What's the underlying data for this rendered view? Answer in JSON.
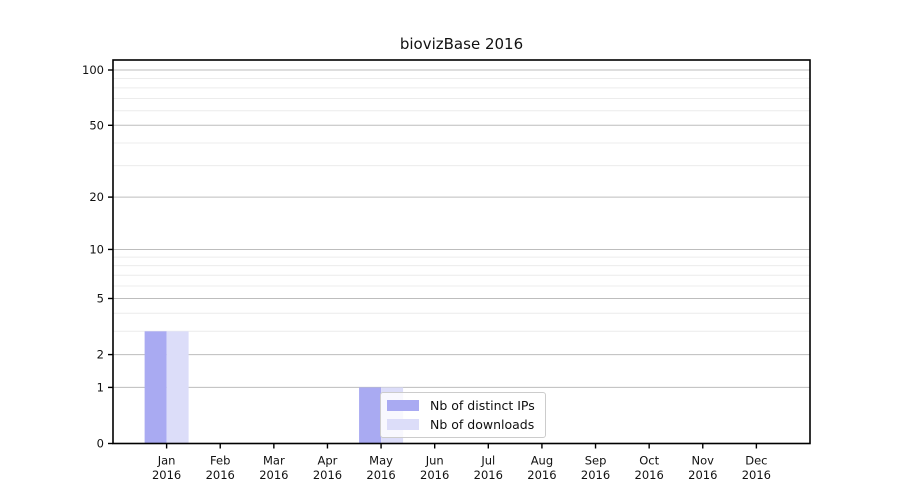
{
  "chart_data": {
    "type": "bar",
    "title": "biovizBase 2016",
    "categories": [
      {
        "month": "Jan",
        "year": "2016"
      },
      {
        "month": "Feb",
        "year": "2016"
      },
      {
        "month": "Mar",
        "year": "2016"
      },
      {
        "month": "Apr",
        "year": "2016"
      },
      {
        "month": "May",
        "year": "2016"
      },
      {
        "month": "Jun",
        "year": "2016"
      },
      {
        "month": "Jul",
        "year": "2016"
      },
      {
        "month": "Aug",
        "year": "2016"
      },
      {
        "month": "Sep",
        "year": "2016"
      },
      {
        "month": "Oct",
        "year": "2016"
      },
      {
        "month": "Nov",
        "year": "2016"
      },
      {
        "month": "Dec",
        "year": "2016"
      }
    ],
    "series": [
      {
        "name": "Nb of distinct IPs",
        "color": "#a9aaf2",
        "values": [
          3,
          0,
          0,
          0,
          1,
          0,
          0,
          0,
          0,
          0,
          0,
          0
        ]
      },
      {
        "name": "Nb of downloads",
        "color": "#dcddf9",
        "values": [
          3,
          0,
          0,
          0,
          1,
          0,
          0,
          0,
          0,
          0,
          0,
          0
        ]
      }
    ],
    "yscale": "log10(value+1)",
    "ylim": [
      0,
      100
    ],
    "y_major_ticks": [
      0,
      1,
      2,
      5,
      10,
      20,
      50,
      100
    ],
    "y_minor_ticks": [
      3,
      4,
      6,
      7,
      8,
      9,
      30,
      40,
      60,
      70,
      80,
      90
    ],
    "grid": "horizontal",
    "legend_position": "inside-bottom-center",
    "colors": {
      "major_grid": "#bdbdbd",
      "minor_grid": "#ececec",
      "axis": "#000000",
      "text": "#111111",
      "legend_border": "#cccccc"
    }
  }
}
